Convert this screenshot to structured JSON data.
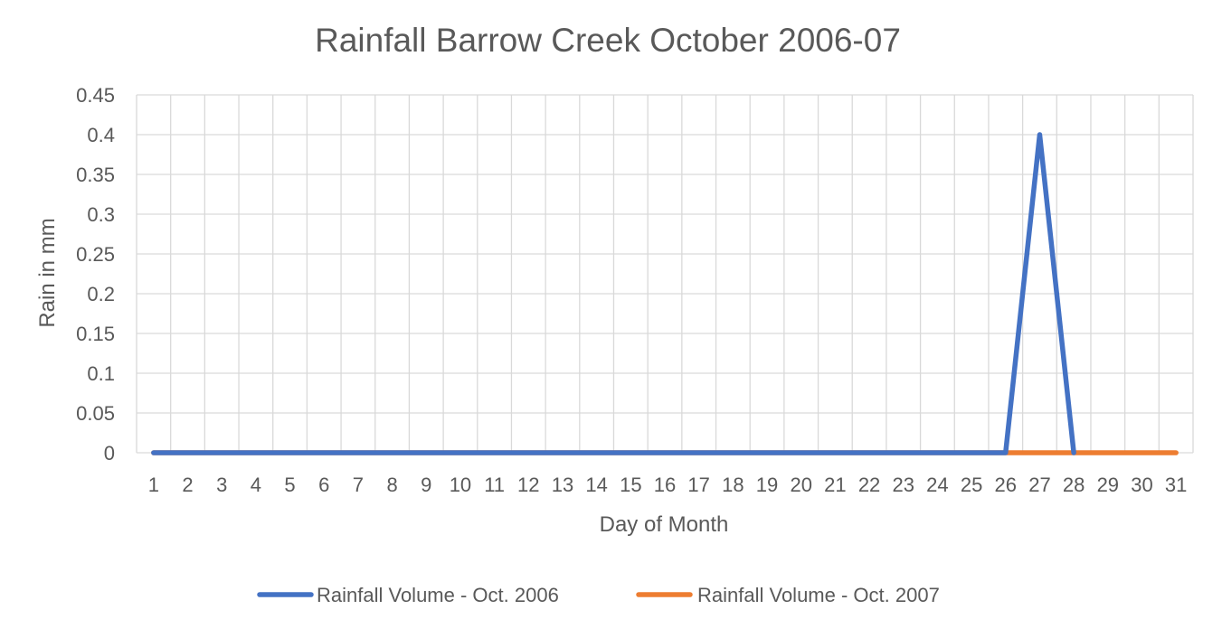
{
  "chart_data": {
    "type": "line",
    "title": "Rainfall Barrow Creek October 2006-07",
    "xlabel": "Day of Month",
    "ylabel": "Rain in mm",
    "categories": [
      "1",
      "2",
      "3",
      "4",
      "5",
      "6",
      "7",
      "8",
      "9",
      "10",
      "11",
      "12",
      "13",
      "14",
      "15",
      "16",
      "17",
      "18",
      "19",
      "20",
      "21",
      "22",
      "23",
      "24",
      "25",
      "26",
      "27",
      "28",
      "29",
      "30",
      "31"
    ],
    "ylim": [
      0,
      0.45
    ],
    "yticks": [
      "0",
      "0.05",
      "0.1",
      "0.15",
      "0.2",
      "0.25",
      "0.3",
      "0.35",
      "0.4",
      "0.45"
    ],
    "grid": true,
    "legend_position": "bottom",
    "series": [
      {
        "name": "Rainfall Volume - Oct. 2006",
        "color": "#4472C4",
        "values": [
          0,
          0,
          0,
          0,
          0,
          0,
          0,
          0,
          0,
          0,
          0,
          0,
          0,
          0,
          0,
          0,
          0,
          0,
          0,
          0,
          0,
          0,
          0,
          0,
          0,
          0,
          0.4,
          0,
          null,
          null,
          null
        ]
      },
      {
        "name": "Rainfall Volume - Oct. 2007",
        "color": "#ED7D31",
        "values": [
          0,
          0,
          0,
          0,
          0,
          0,
          0,
          0,
          0,
          0,
          0,
          0,
          0,
          0,
          0,
          0,
          0,
          0,
          0,
          0,
          0,
          0,
          0,
          0,
          0,
          0,
          0,
          0,
          0,
          0,
          0
        ]
      }
    ]
  }
}
